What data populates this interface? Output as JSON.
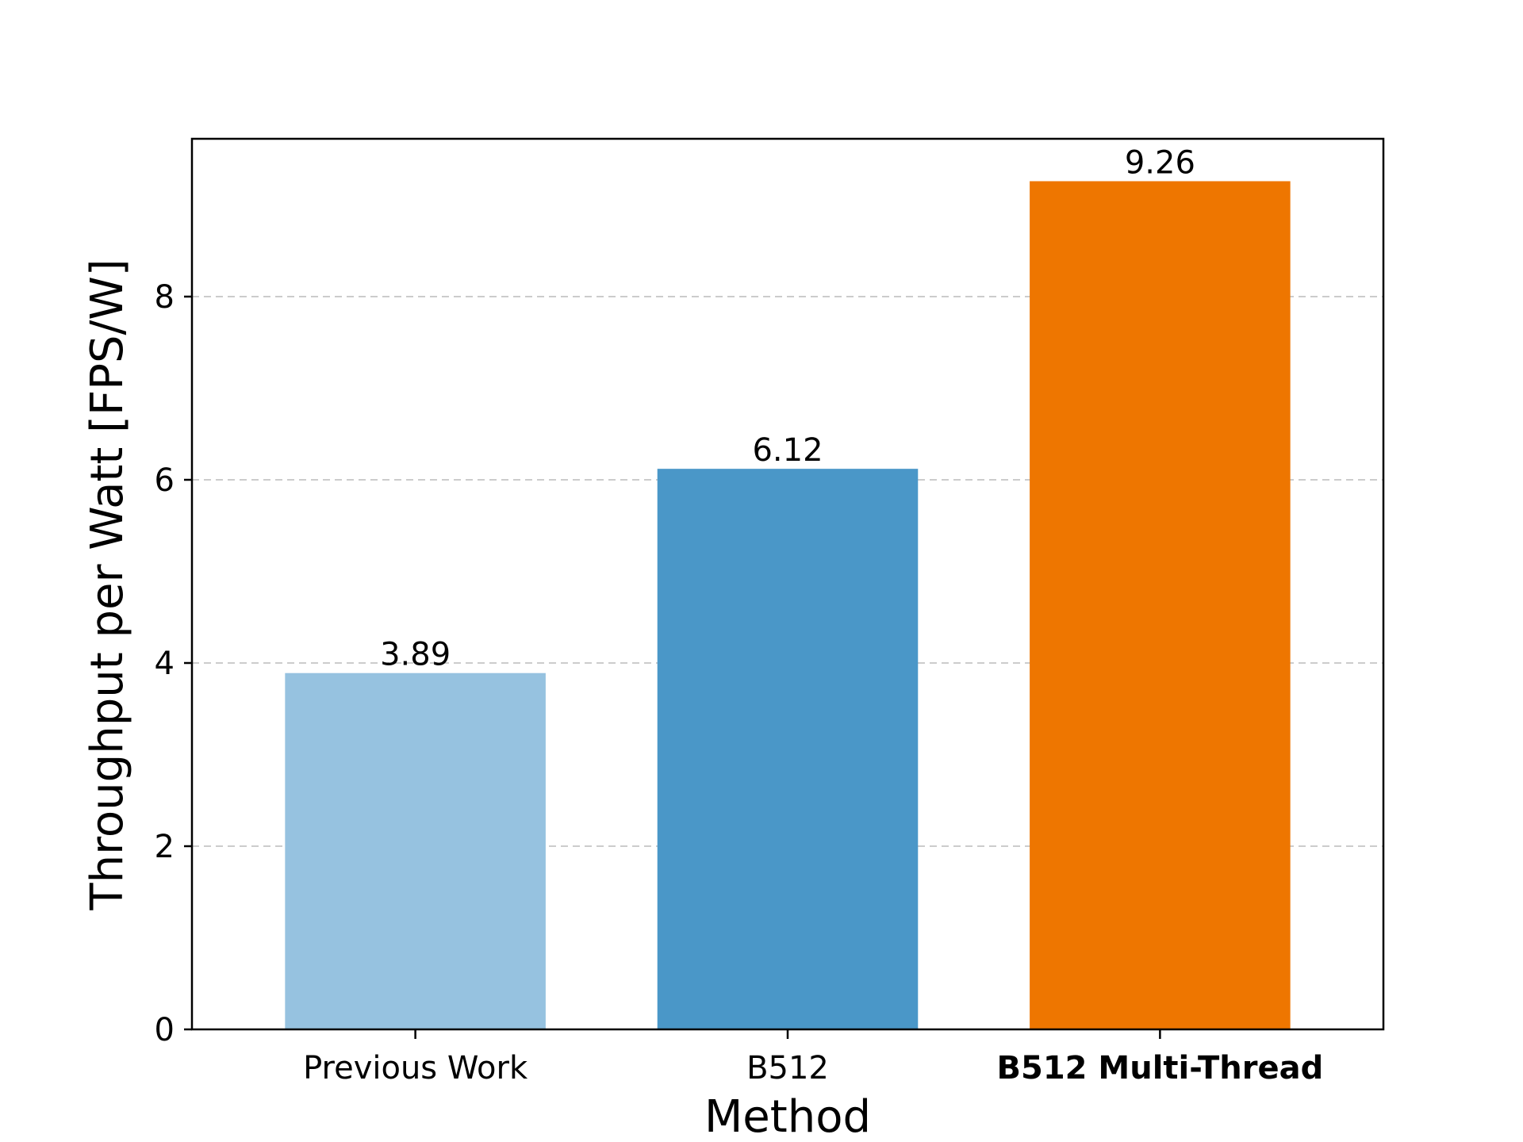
{
  "chart_data": {
    "type": "bar",
    "title": "",
    "xlabel": "Method",
    "ylabel": "Throughput per Watt [FPS/W]",
    "categories": [
      "Previous Work",
      "B512",
      "B512 Multi-Thread"
    ],
    "values": [
      3.89,
      6.12,
      9.26
    ],
    "value_labels": [
      "3.89",
      "6.12",
      "9.26"
    ],
    "bar_colors": [
      "#96c2e0",
      "#4a97c8",
      "#ee7600"
    ],
    "bold_categories": [
      "B512 Multi-Thread"
    ],
    "ylim": [
      0,
      9.723
    ],
    "yticks": [
      0,
      2,
      4,
      6,
      8
    ],
    "ytick_labels": [
      "0",
      "2",
      "4",
      "6",
      "8"
    ],
    "grid": "y-dashed",
    "legend": "none"
  }
}
